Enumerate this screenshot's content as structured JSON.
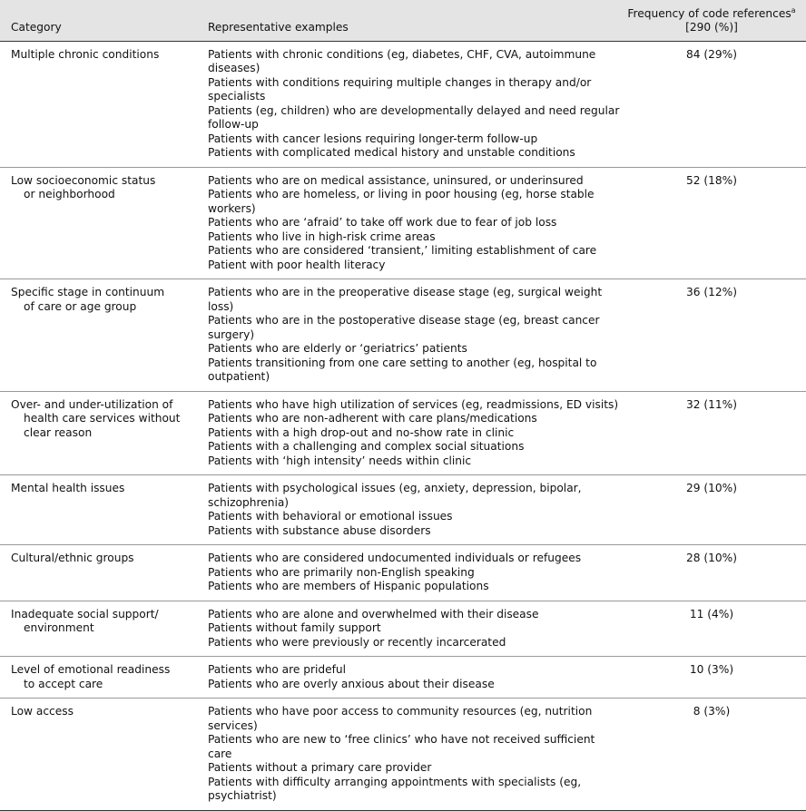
{
  "table": {
    "columns": {
      "category": "Category",
      "examples": "Representative examples",
      "frequency": {
        "text": "Frequency of code references",
        "sup": "a",
        "line2": "[290 (%)]"
      }
    },
    "rows": [
      {
        "category": [
          "Multiple chronic conditions"
        ],
        "examples": [
          "Patients with chronic conditions (eg, diabetes, CHF, CVA, autoimmune diseases)",
          "Patients with conditions requiring multiple changes in therapy and/or specialists",
          "Patients (eg, children) who are developmentally delayed and need regular follow-up",
          "Patients with cancer lesions requiring longer-term follow-up",
          "Patients with complicated medical history and unstable conditions"
        ],
        "frequency": "84 (29%)"
      },
      {
        "category": [
          "Low socioeconomic status",
          "or neighborhood"
        ],
        "examples": [
          "Patients who are on medical assistance, uninsured, or underinsured",
          "Patients who are homeless, or living in poor housing (eg, horse stable workers)",
          "Patients who are ‘afraid’ to take off work due to fear of job loss",
          "Patients who live in high-risk crime areas",
          "Patients who are considered ‘transient,’ limiting establishment of care",
          "Patient with poor health literacy"
        ],
        "frequency": "52 (18%)"
      },
      {
        "category": [
          "Specific stage in continuum",
          "of care or age group"
        ],
        "examples": [
          "Patients who are in the preoperative disease stage (eg, surgical weight loss)",
          "Patients who are in the postoperative disease stage (eg, breast cancer surgery)",
          "Patients who are elderly or ‘geriatrics’ patients",
          "Patients transitioning from one care setting to another (eg, hospital to outpatient)"
        ],
        "frequency": "36 (12%)"
      },
      {
        "category": [
          "Over- and under-utilization of",
          "health care services without",
          "clear reason"
        ],
        "examples": [
          "Patients who have high utilization of services (eg, readmissions, ED visits)",
          "Patients who are non-adherent with care plans/medications",
          "Patients with a high drop-out and no-show rate in clinic",
          "Patients with a challenging and complex social situations",
          "Patients with ‘high intensity’ needs within clinic"
        ],
        "frequency": "32 (11%)"
      },
      {
        "category": [
          "Mental health issues"
        ],
        "examples": [
          "Patients with psychological issues (eg, anxiety, depression, bipolar, schizophrenia)",
          "Patients with behavioral or emotional issues",
          "Patients with substance abuse disorders"
        ],
        "frequency": "29 (10%)"
      },
      {
        "category": [
          "Cultural/ethnic groups"
        ],
        "examples": [
          "Patients who are considered undocumented individuals or refugees",
          "Patients who are primarily non-English speaking",
          "Patients who are members of Hispanic populations"
        ],
        "frequency": "28 (10%)"
      },
      {
        "category": [
          "Inadequate social support/",
          "environment"
        ],
        "examples": [
          "Patients who are alone and overwhelmed with their disease",
          "Patients without family support",
          "Patients who were previously or recently incarcerated"
        ],
        "frequency": "11 (4%)"
      },
      {
        "category": [
          "Level of emotional readiness",
          "to accept care"
        ],
        "examples": [
          "Patients who are prideful",
          "Patients who are overly anxious about their disease"
        ],
        "frequency": "10 (3%)"
      },
      {
        "category": [
          "Low access"
        ],
        "examples": [
          "Patients who have poor access to community resources (eg, nutrition services)",
          "Patients who are new to ‘free clinics’ who have not received sufficient care",
          "Patients without a primary care provider",
          "Patients with difficulty arranging appointments with specialists (eg, psychiatrist)"
        ],
        "frequency": "8 (3%)"
      }
    ]
  }
}
